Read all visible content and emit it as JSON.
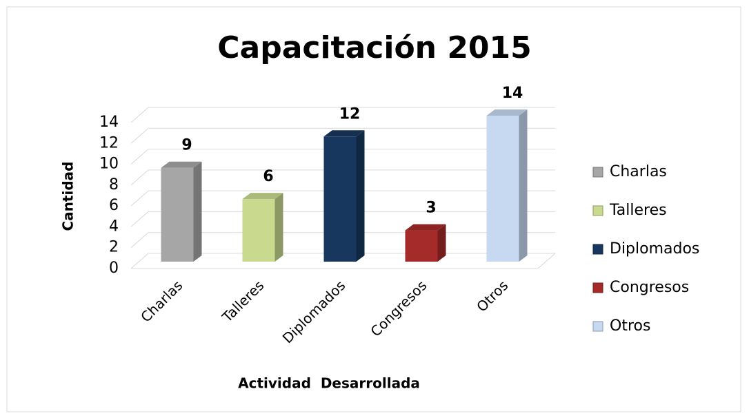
{
  "chart_data": {
    "type": "bar3d",
    "title": "Capacitación 2015",
    "categories": [
      "Charlas",
      "Talleres",
      "Diplomados",
      "Congresos",
      "Otros"
    ],
    "values": [
      9,
      6,
      12,
      3,
      14
    ],
    "colors": [
      "#a6a6a6",
      "#c9da8f",
      "#17375e",
      "#a52a2a",
      "#c6d9f1"
    ],
    "ylim": [
      0,
      14
    ],
    "yticks": [
      0,
      2,
      4,
      6,
      8,
      10,
      12,
      14
    ],
    "grid": true,
    "y_label": "Cantidad",
    "x_label": "Actividad  Desarrollada",
    "legend": "right"
  }
}
